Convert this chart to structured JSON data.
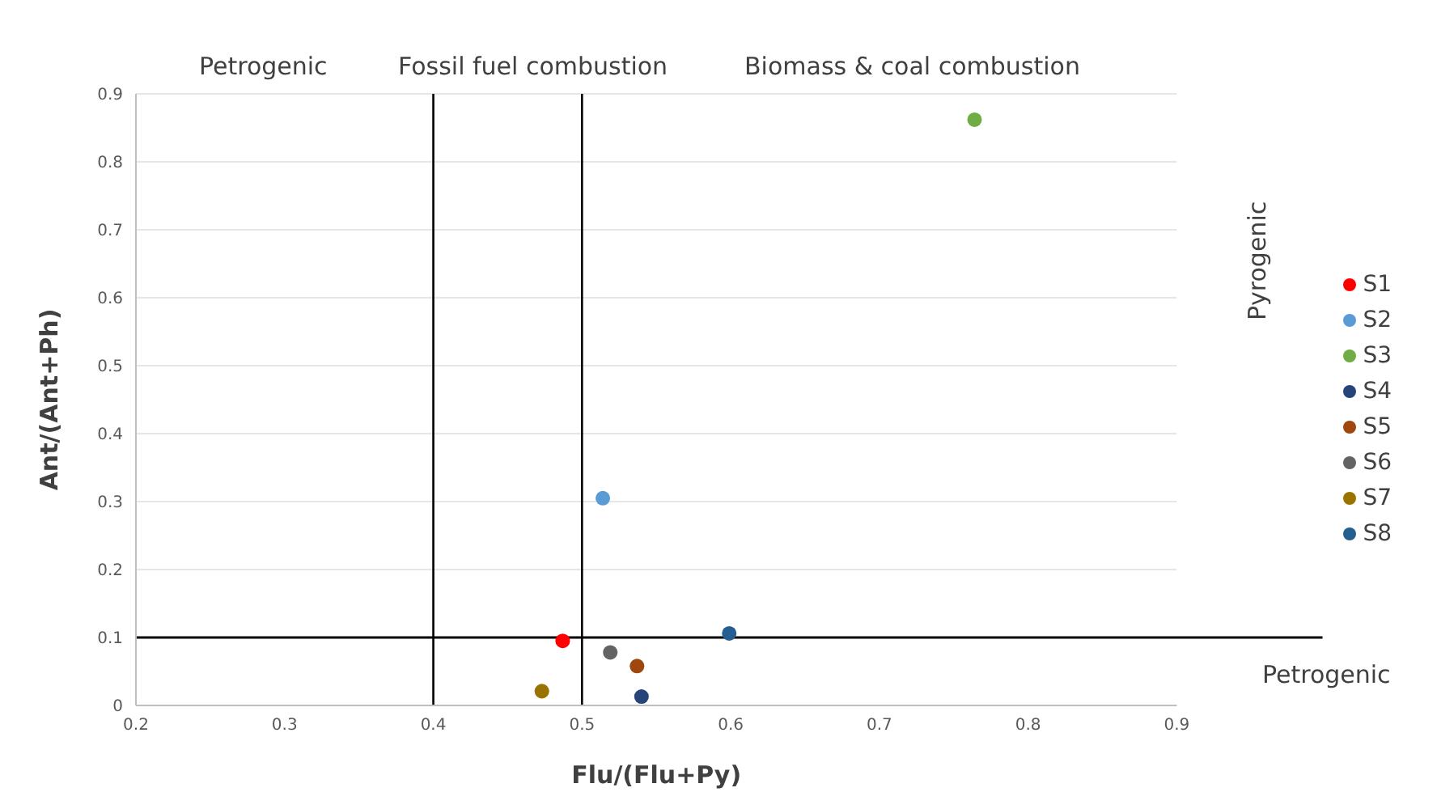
{
  "chart_data": {
    "type": "scatter",
    "xlabel": "Flu/(Flu+Py)",
    "ylabel": "Ant/(Ant+Ph)",
    "xlim": [
      0.2,
      0.9
    ],
    "xticks": [
      0.2,
      0.3,
      0.4,
      0.5,
      0.6,
      0.7,
      0.8,
      0.9
    ],
    "ylim": [
      0,
      0.9
    ],
    "yticks": [
      0,
      0.1,
      0.2,
      0.3,
      0.4,
      0.5,
      0.6,
      0.7,
      0.8,
      0.9
    ],
    "grid": "y",
    "legend": "right",
    "marker": "circle",
    "series": [
      {
        "name": "S1",
        "color": "#ff0000",
        "x": [
          0.487
        ],
        "values": [
          0.095
        ]
      },
      {
        "name": "S2",
        "color": "#5b9bd5",
        "x": [
          0.514
        ],
        "values": [
          0.305
        ]
      },
      {
        "name": "S3",
        "color": "#70ad47",
        "x": [
          0.764
        ],
        "values": [
          0.862
        ]
      },
      {
        "name": "S4",
        "color": "#264478",
        "x": [
          0.54
        ],
        "values": [
          0.013
        ]
      },
      {
        "name": "S5",
        "color": "#9e480e",
        "x": [
          0.537
        ],
        "values": [
          0.058
        ]
      },
      {
        "name": "S6",
        "color": "#636363",
        "x": [
          0.519
        ],
        "values": [
          0.078
        ]
      },
      {
        "name": "S7",
        "color": "#997300",
        "x": [
          0.473
        ],
        "values": [
          0.021
        ]
      },
      {
        "name": "S8",
        "color": "#255e91",
        "x": [
          0.599
        ],
        "values": [
          0.106
        ]
      }
    ],
    "ref_lines": [
      {
        "axis": "x",
        "value": 0.4,
        "color": "#000000"
      },
      {
        "axis": "x",
        "value": 0.5,
        "color": "#000000"
      },
      {
        "axis": "y",
        "value": 0.1,
        "color": "#000000"
      }
    ],
    "annotations": [
      "Petrogenic",
      "Fossil fuel combustion",
      "Biomass & coal combustion",
      "Pyrogenic",
      "Petrogenic"
    ]
  }
}
